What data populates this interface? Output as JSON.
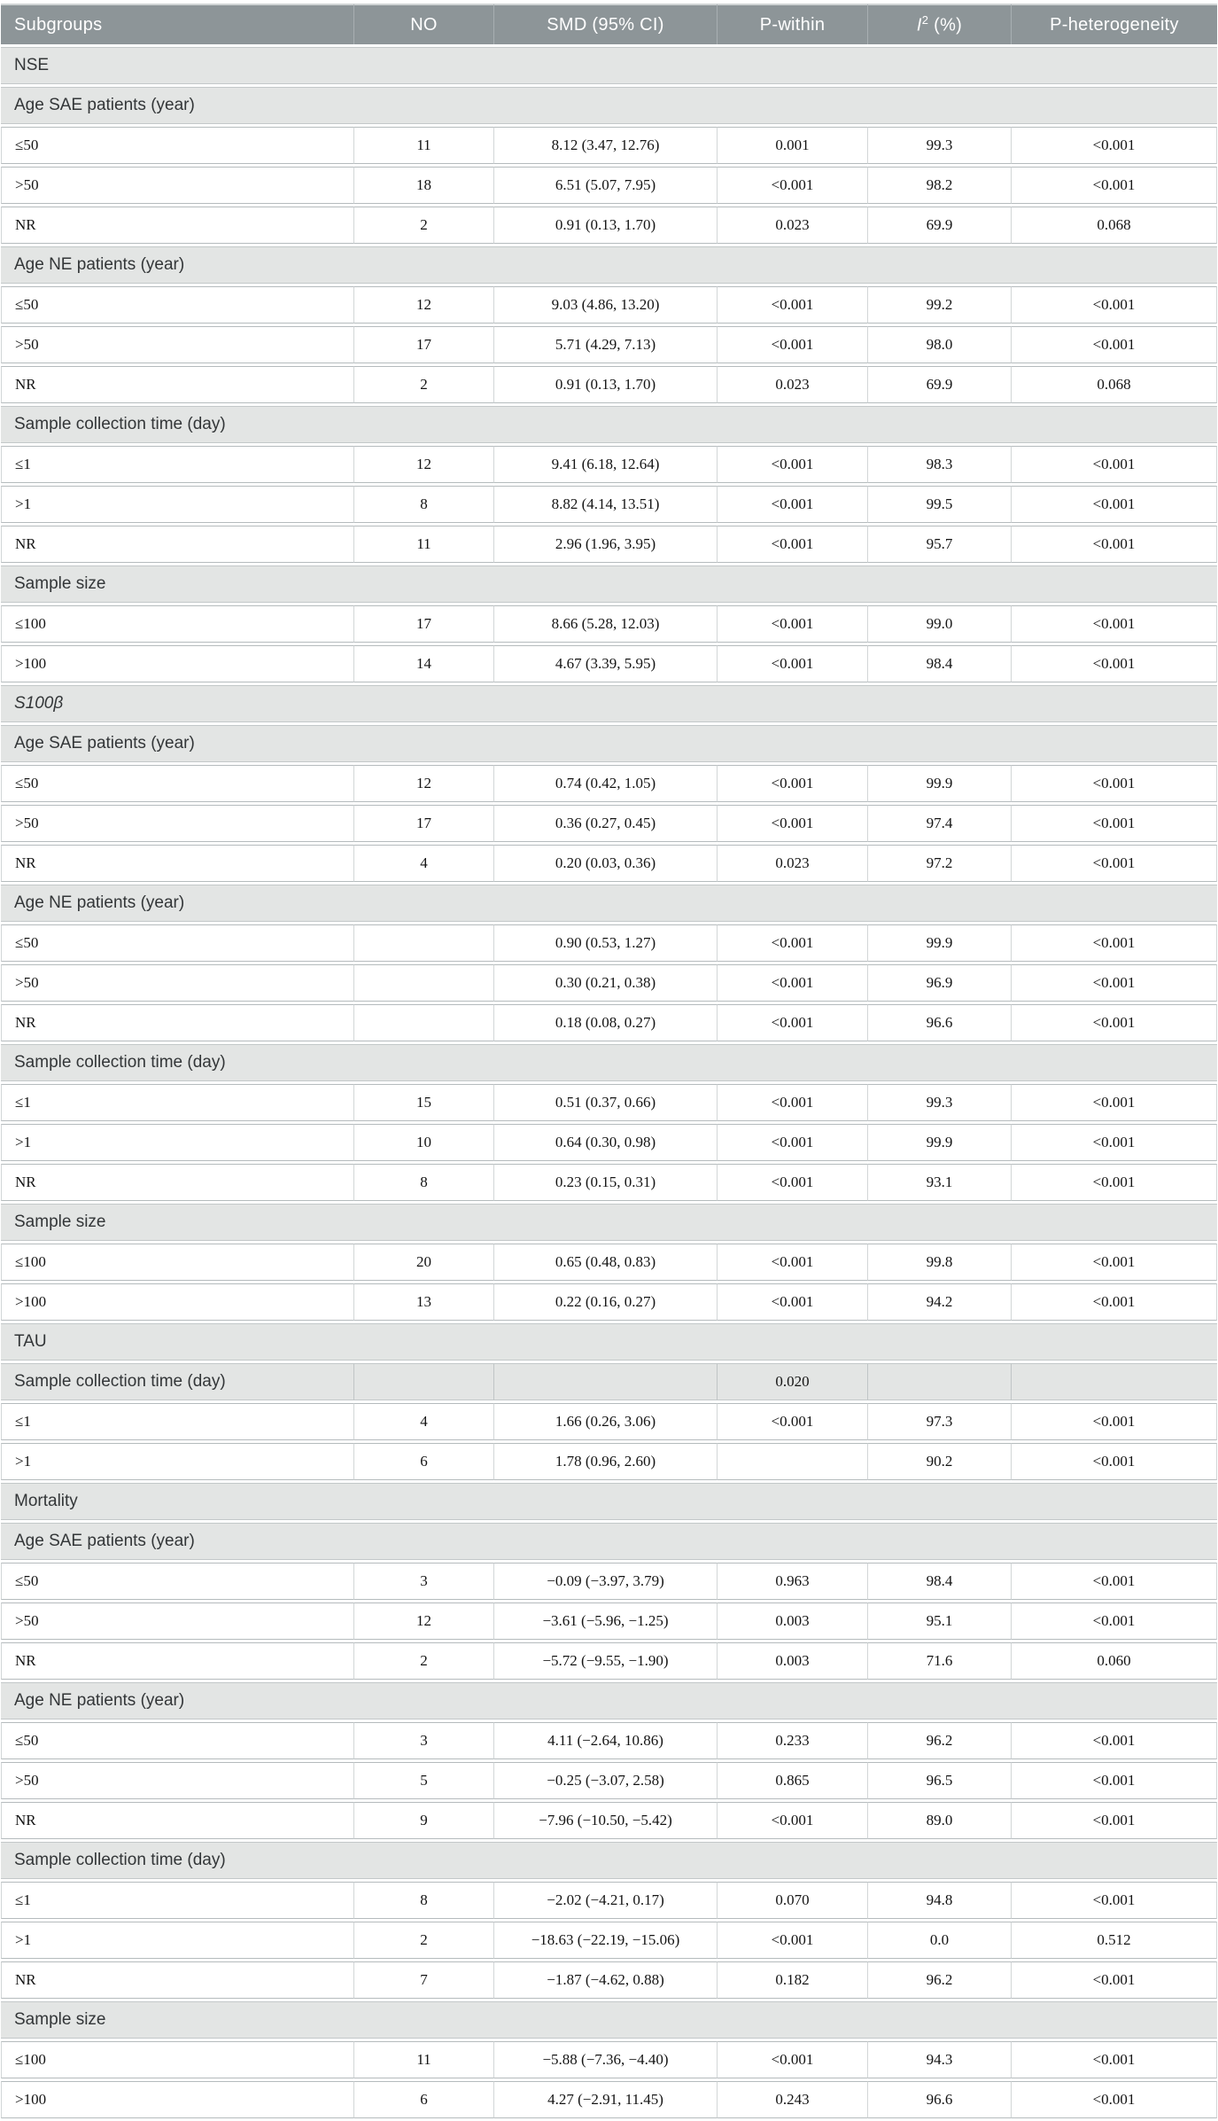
{
  "table": {
    "columns": [
      {
        "label": "Subgroups"
      },
      {
        "label": "NO"
      },
      {
        "label": "SMD (95% CI)"
      },
      {
        "label": "P-within"
      },
      {
        "label_base": "I",
        "label_sup": "2",
        "label_unit": " (%)"
      },
      {
        "label": "P-heterogeneity"
      }
    ],
    "rows": [
      {
        "type": "group",
        "label": "NSE"
      },
      {
        "type": "group",
        "label": "Age SAE patients (year)"
      },
      {
        "type": "data",
        "label": "≤50",
        "cells": [
          "11",
          "8.12 (3.47, 12.76)",
          "0.001",
          "99.3",
          "<0.001"
        ]
      },
      {
        "type": "data",
        "label": ">50",
        "cells": [
          "18",
          "6.51 (5.07, 7.95)",
          "<0.001",
          "98.2",
          "<0.001"
        ]
      },
      {
        "type": "data",
        "label": "NR",
        "cells": [
          "2",
          "0.91 (0.13, 1.70)",
          "0.023",
          "69.9",
          "0.068"
        ]
      },
      {
        "type": "group",
        "label": "Age NE patients (year)"
      },
      {
        "type": "data",
        "label": "≤50",
        "cells": [
          "12",
          "9.03 (4.86, 13.20)",
          "<0.001",
          "99.2",
          "<0.001"
        ]
      },
      {
        "type": "data",
        "label": ">50",
        "cells": [
          "17",
          "5.71 (4.29, 7.13)",
          "<0.001",
          "98.0",
          "<0.001"
        ]
      },
      {
        "type": "data",
        "label": "NR",
        "cells": [
          "2",
          "0.91 (0.13, 1.70)",
          "0.023",
          "69.9",
          "0.068"
        ]
      },
      {
        "type": "group",
        "label": "Sample collection time (day)"
      },
      {
        "type": "data",
        "label": "≤1",
        "cells": [
          "12",
          "9.41 (6.18, 12.64)",
          "<0.001",
          "98.3",
          "<0.001"
        ]
      },
      {
        "type": "data",
        "label": ">1",
        "cells": [
          "8",
          "8.82 (4.14, 13.51)",
          "<0.001",
          "99.5",
          "<0.001"
        ]
      },
      {
        "type": "data",
        "label": "NR",
        "cells": [
          "11",
          "2.96 (1.96, 3.95)",
          "<0.001",
          "95.7",
          "<0.001"
        ]
      },
      {
        "type": "group",
        "label": "Sample size"
      },
      {
        "type": "data",
        "label": "≤100",
        "cells": [
          "17",
          "8.66 (5.28, 12.03)",
          "<0.001",
          "99.0",
          "<0.001"
        ]
      },
      {
        "type": "data",
        "label": ">100",
        "cells": [
          "14",
          "4.67 (3.39, 5.95)",
          "<0.001",
          "98.4",
          "<0.001"
        ]
      },
      {
        "type": "group",
        "label": "S100β",
        "italic": true
      },
      {
        "type": "group",
        "label": "Age SAE patients (year)"
      },
      {
        "type": "data",
        "label": "≤50",
        "cells": [
          "12",
          "0.74 (0.42, 1.05)",
          "<0.001",
          "99.9",
          "<0.001"
        ]
      },
      {
        "type": "data",
        "label": ">50",
        "cells": [
          "17",
          "0.36 (0.27, 0.45)",
          "<0.001",
          "97.4",
          "<0.001"
        ]
      },
      {
        "type": "data",
        "label": "NR",
        "cells": [
          "4",
          "0.20 (0.03, 0.36)",
          "0.023",
          "97.2",
          "<0.001"
        ]
      },
      {
        "type": "group",
        "label": "Age NE patients (year)"
      },
      {
        "type": "data",
        "label": "≤50",
        "cells": [
          "",
          "0.90 (0.53, 1.27)",
          "<0.001",
          "99.9",
          "<0.001"
        ]
      },
      {
        "type": "data",
        "label": ">50",
        "cells": [
          "",
          "0.30 (0.21, 0.38)",
          "<0.001",
          "96.9",
          "<0.001"
        ]
      },
      {
        "type": "data",
        "label": "NR",
        "cells": [
          "",
          "0.18 (0.08, 0.27)",
          "<0.001",
          "96.6",
          "<0.001"
        ]
      },
      {
        "type": "group",
        "label": "Sample collection time (day)"
      },
      {
        "type": "data",
        "label": "≤1",
        "cells": [
          "15",
          "0.51 (0.37, 0.66)",
          "<0.001",
          "99.3",
          "<0.001"
        ]
      },
      {
        "type": "data",
        "label": ">1",
        "cells": [
          "10",
          "0.64 (0.30, 0.98)",
          "<0.001",
          "99.9",
          "<0.001"
        ]
      },
      {
        "type": "data",
        "label": "NR",
        "cells": [
          "8",
          "0.23 (0.15, 0.31)",
          "<0.001",
          "93.1",
          "<0.001"
        ]
      },
      {
        "type": "group",
        "label": "Sample size"
      },
      {
        "type": "data",
        "label": "≤100",
        "cells": [
          "20",
          "0.65 (0.48, 0.83)",
          "<0.001",
          "99.8",
          "<0.001"
        ]
      },
      {
        "type": "data",
        "label": ">100",
        "cells": [
          "13",
          "0.22 (0.16, 0.27)",
          "<0.001",
          "94.2",
          "<0.001"
        ]
      },
      {
        "type": "group",
        "label": "TAU"
      },
      {
        "type": "group_cells",
        "label": "Sample collection time (day)",
        "cells": [
          "",
          "",
          "0.020",
          "",
          ""
        ]
      },
      {
        "type": "data",
        "label": "≤1",
        "cells": [
          "4",
          "1.66 (0.26, 3.06)",
          "<0.001",
          "97.3",
          "<0.001"
        ]
      },
      {
        "type": "data",
        "label": ">1",
        "cells": [
          "6",
          "1.78 (0.96, 2.60)",
          "",
          "90.2",
          "<0.001"
        ]
      },
      {
        "type": "group",
        "label": "Mortality"
      },
      {
        "type": "group",
        "label": "Age SAE patients (year)"
      },
      {
        "type": "data",
        "label": "≤50",
        "cells": [
          "3",
          "−0.09 (−3.97, 3.79)",
          "0.963",
          "98.4",
          "<0.001"
        ]
      },
      {
        "type": "data",
        "label": ">50",
        "cells": [
          "12",
          "−3.61 (−5.96, −1.25)",
          "0.003",
          "95.1",
          "<0.001"
        ]
      },
      {
        "type": "data",
        "label": "NR",
        "cells": [
          "2",
          "−5.72 (−9.55, −1.90)",
          "0.003",
          "71.6",
          "0.060"
        ]
      },
      {
        "type": "group",
        "label": "Age NE patients (year)"
      },
      {
        "type": "data",
        "label": "≤50",
        "cells": [
          "3",
          "4.11 (−2.64, 10.86)",
          "0.233",
          "96.2",
          "<0.001"
        ]
      },
      {
        "type": "data",
        "label": ">50",
        "cells": [
          "5",
          "−0.25 (−3.07, 2.58)",
          "0.865",
          "96.5",
          "<0.001"
        ]
      },
      {
        "type": "data",
        "label": "NR",
        "cells": [
          "9",
          "−7.96 (−10.50, −5.42)",
          "<0.001",
          "89.0",
          "<0.001"
        ]
      },
      {
        "type": "group",
        "label": "Sample collection time (day)"
      },
      {
        "type": "data",
        "label": "≤1",
        "cells": [
          "8",
          "−2.02 (−4.21, 0.17)",
          "0.070",
          "94.8",
          "<0.001"
        ]
      },
      {
        "type": "data",
        "label": ">1",
        "cells": [
          "2",
          "−18.63 (−22.19, −15.06)",
          "<0.001",
          "0.0",
          "0.512"
        ]
      },
      {
        "type": "data",
        "label": "NR",
        "cells": [
          "7",
          "−1.87 (−4.62, 0.88)",
          "0.182",
          "96.2",
          "<0.001"
        ]
      },
      {
        "type": "group",
        "label": "Sample size"
      },
      {
        "type": "data",
        "label": "≤100",
        "cells": [
          "11",
          "−5.88 (−7.36, −4.40)",
          "<0.001",
          "94.3",
          "<0.001"
        ]
      },
      {
        "type": "data",
        "label": ">100",
        "cells": [
          "6",
          "4.27 (−2.91, 11.45)",
          "0.243",
          "96.6",
          "<0.001"
        ]
      }
    ]
  },
  "colors": {
    "header_bg": "#8d9598",
    "header_text": "#ffffff",
    "group_row_bg": "#e3e5e4",
    "row_border": "#b5bbbd",
    "column_border": "#d2d6d7",
    "data_text": "#141414"
  }
}
